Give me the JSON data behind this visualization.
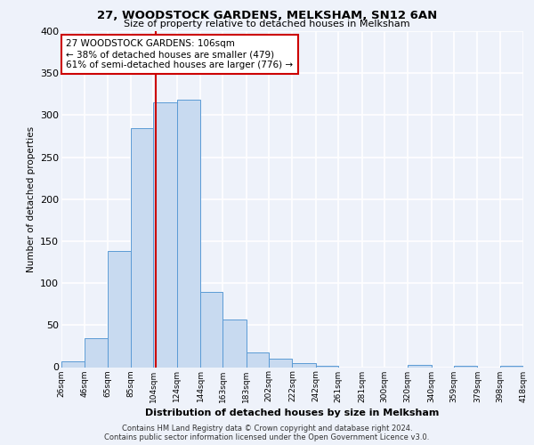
{
  "title": "27, WOODSTOCK GARDENS, MELKSHAM, SN12 6AN",
  "subtitle": "Size of property relative to detached houses in Melksham",
  "xlabel": "Distribution of detached houses by size in Melksham",
  "ylabel": "Number of detached properties",
  "bin_labels": [
    "26sqm",
    "46sqm",
    "65sqm",
    "85sqm",
    "104sqm",
    "124sqm",
    "144sqm",
    "163sqm",
    "183sqm",
    "202sqm",
    "222sqm",
    "242sqm",
    "261sqm",
    "281sqm",
    "300sqm",
    "320sqm",
    "340sqm",
    "359sqm",
    "379sqm",
    "398sqm",
    "418sqm"
  ],
  "bar_heights": [
    7,
    34,
    138,
    285,
    315,
    318,
    90,
    57,
    18,
    10,
    5,
    2,
    0,
    0,
    0,
    3,
    0,
    2,
    0,
    2
  ],
  "bar_color": "#c8daf0",
  "bar_edge_color": "#5b9bd5",
  "property_line_x": 106,
  "property_line_label": "27 WOODSTOCK GARDENS: 106sqm",
  "annotation_line1": "← 38% of detached houses are smaller (479)",
  "annotation_line2": "61% of semi-detached houses are larger (776) →",
  "annotation_box_color": "#cc0000",
  "ylim": [
    0,
    400
  ],
  "yticks": [
    0,
    50,
    100,
    150,
    200,
    250,
    300,
    350,
    400
  ],
  "background_color": "#eef2fa",
  "grid_color": "#ffffff",
  "footer_line1": "Contains HM Land Registry data © Crown copyright and database right 2024.",
  "footer_line2": "Contains public sector information licensed under the Open Government Licence v3.0."
}
